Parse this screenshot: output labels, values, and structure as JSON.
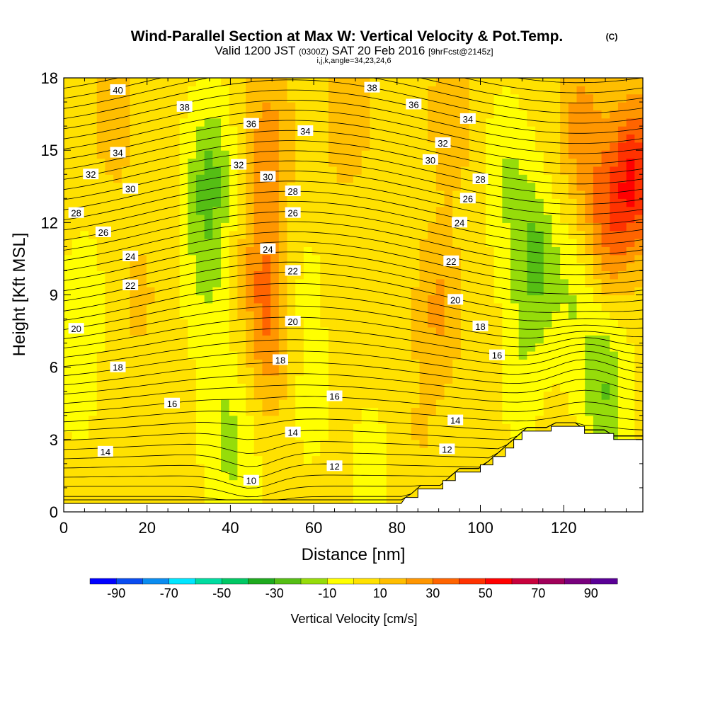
{
  "chart_data": {
    "type": "heatmap",
    "title": "Wind-Parallel Section at Max W: Vertical Velocity & Pot.Temp.",
    "title_mark": "(C)",
    "subtitle_prefix": "Valid 1200 JST",
    "subtitle_utc": "(0300Z)",
    "subtitle_date": "SAT 20 Feb 2016",
    "subtitle_fcst": "[9hrFcst@2145z]",
    "subtitle_line2": "i,j,k,angle=34,23,24,6",
    "xlabel": "Distance [nm]",
    "ylabel": "Height [Kft MSL]",
    "x_range": [
      0,
      139
    ],
    "y_range": [
      0,
      18
    ],
    "x_ticks": [
      "0",
      "20",
      "40",
      "60",
      "80",
      "100",
      "120"
    ],
    "x_tick_values": [
      0,
      20,
      40,
      60,
      80,
      100,
      120
    ],
    "y_ticks": [
      "0",
      "3",
      "6",
      "9",
      "12",
      "15",
      "18"
    ],
    "y_tick_values": [
      0,
      3,
      6,
      9,
      12,
      15,
      18
    ],
    "colorbar": {
      "label": "Vertical Velocity [cm/s]",
      "tick_labels": [
        "-90",
        "-70",
        "-50",
        "-30",
        "-10",
        "10",
        "30",
        "50",
        "70",
        "90"
      ],
      "tick_values": [
        -90,
        -70,
        -50,
        -30,
        -10,
        10,
        30,
        50,
        70,
        90
      ],
      "bounds": [
        -100,
        100
      ],
      "colors": [
        "#0000ff",
        "#0a4cf0",
        "#0a8cf0",
        "#00e6ff",
        "#00dca0",
        "#00c864",
        "#1eaa1e",
        "#55be14",
        "#96dc0a",
        "#ffff00",
        "#ffe100",
        "#ffbe00",
        "#ff9600",
        "#ff6400",
        "#ff3200",
        "#ff0000",
        "#c8003c",
        "#a0005a",
        "#78007d",
        "#5a0096"
      ]
    },
    "velocity_features": [
      {
        "x": 12,
        "y": 16.5,
        "w": 12
      },
      {
        "x": 18,
        "y": 9,
        "w": 8
      },
      {
        "x": 5,
        "y": 9,
        "w": -8
      },
      {
        "x": 3,
        "y": 5,
        "w": -6
      },
      {
        "x": 35,
        "y": 14,
        "w": -25
      },
      {
        "x": 34,
        "y": 10,
        "w": -14
      },
      {
        "x": 38,
        "y": 4,
        "w": -12
      },
      {
        "x": 42,
        "y": 1.5,
        "w": -10
      },
      {
        "x": 49,
        "y": 15.5,
        "w": 20
      },
      {
        "x": 48,
        "y": 10,
        "w": 22
      },
      {
        "x": 50,
        "y": 7,
        "w": 17
      },
      {
        "x": 57,
        "y": 9,
        "w": -8
      },
      {
        "x": 59,
        "y": 4.5,
        "w": -7
      },
      {
        "x": 68,
        "y": 16.5,
        "w": 14
      },
      {
        "x": 74,
        "y": 1.8,
        "w": -8
      },
      {
        "x": 90,
        "y": 8.5,
        "w": 18
      },
      {
        "x": 93,
        "y": 16.5,
        "w": 14
      },
      {
        "x": 106,
        "y": 14,
        "w": -14
      },
      {
        "x": 113,
        "y": 10.5,
        "w": -26
      },
      {
        "x": 110,
        "y": 6,
        "w": -10
      },
      {
        "x": 123,
        "y": 9,
        "w": -14
      },
      {
        "x": 130,
        "y": 5,
        "w": -24
      },
      {
        "x": 124,
        "y": 16,
        "w": 20
      },
      {
        "x": 137,
        "y": 14,
        "w": 45
      },
      {
        "x": 130,
        "y": 12,
        "w": 28
      },
      {
        "x": 85,
        "y": 3,
        "w": 6
      }
    ],
    "theta_contour_labels": [
      {
        "text": "40",
        "x": 13,
        "y": 17.5
      },
      {
        "text": "38",
        "x": 29,
        "y": 16.8
      },
      {
        "text": "36",
        "x": 45,
        "y": 16.1
      },
      {
        "text": "34",
        "x": 13,
        "y": 14.9
      },
      {
        "text": "34",
        "x": 58,
        "y": 15.8
      },
      {
        "text": "32",
        "x": 6.5,
        "y": 14.0
      },
      {
        "text": "32",
        "x": 42,
        "y": 14.4
      },
      {
        "text": "30",
        "x": 16,
        "y": 13.4
      },
      {
        "text": "30",
        "x": 49,
        "y": 13.9
      },
      {
        "text": "28",
        "x": 3,
        "y": 12.4
      },
      {
        "text": "28",
        "x": 55,
        "y": 13.3
      },
      {
        "text": "26",
        "x": 9.5,
        "y": 11.6
      },
      {
        "text": "26",
        "x": 55,
        "y": 12.4
      },
      {
        "text": "24",
        "x": 16,
        "y": 10.6
      },
      {
        "text": "24",
        "x": 49,
        "y": 10.9
      },
      {
        "text": "22",
        "x": 16,
        "y": 9.4
      },
      {
        "text": "22",
        "x": 55,
        "y": 10.0
      },
      {
        "text": "20",
        "x": 3,
        "y": 7.6
      },
      {
        "text": "20",
        "x": 55,
        "y": 7.9
      },
      {
        "text": "18",
        "x": 13,
        "y": 6.0
      },
      {
        "text": "18",
        "x": 52,
        "y": 6.3
      },
      {
        "text": "16",
        "x": 26,
        "y": 4.5
      },
      {
        "text": "16",
        "x": 65,
        "y": 4.8
      },
      {
        "text": "14",
        "x": 10,
        "y": 2.5
      },
      {
        "text": "14",
        "x": 55,
        "y": 3.3
      },
      {
        "text": "12",
        "x": 65,
        "y": 1.9
      },
      {
        "text": "10",
        "x": 45,
        "y": 1.3
      },
      {
        "text": "38",
        "x": 74,
        "y": 17.6
      },
      {
        "text": "36",
        "x": 84,
        "y": 16.9
      },
      {
        "text": "34",
        "x": 97,
        "y": 16.3
      },
      {
        "text": "32",
        "x": 91,
        "y": 15.3
      },
      {
        "text": "30",
        "x": 88,
        "y": 14.6
      },
      {
        "text": "28",
        "x": 100,
        "y": 13.8
      },
      {
        "text": "26",
        "x": 97,
        "y": 13.0
      },
      {
        "text": "24",
        "x": 95,
        "y": 12.0
      },
      {
        "text": "22",
        "x": 93,
        "y": 10.4
      },
      {
        "text": "20",
        "x": 94,
        "y": 8.8
      },
      {
        "text": "18",
        "x": 100,
        "y": 7.7
      },
      {
        "text": "16",
        "x": 104,
        "y": 6.5
      },
      {
        "text": "14",
        "x": 94,
        "y": 3.8
      },
      {
        "text": "12",
        "x": 92,
        "y": 2.6
      }
    ],
    "terrain_profile": [
      [
        0,
        0.35
      ],
      [
        81,
        0.35
      ],
      [
        82,
        0.6
      ],
      [
        85,
        0.6
      ],
      [
        85,
        0.95
      ],
      [
        91,
        0.95
      ],
      [
        91,
        1.3
      ],
      [
        94,
        1.3
      ],
      [
        94,
        1.65
      ],
      [
        100,
        1.65
      ],
      [
        100,
        1.95
      ],
      [
        103,
        1.95
      ],
      [
        103,
        2.3
      ],
      [
        106,
        2.3
      ],
      [
        106,
        2.65
      ],
      [
        108,
        2.65
      ],
      [
        108,
        3.0
      ],
      [
        110,
        3.0
      ],
      [
        110,
        3.35
      ],
      [
        117,
        3.35
      ],
      [
        117,
        3.55
      ],
      [
        125,
        3.55
      ],
      [
        125,
        3.25
      ],
      [
        132,
        3.25
      ],
      [
        132,
        3.0
      ],
      [
        139,
        3.0
      ]
    ]
  }
}
